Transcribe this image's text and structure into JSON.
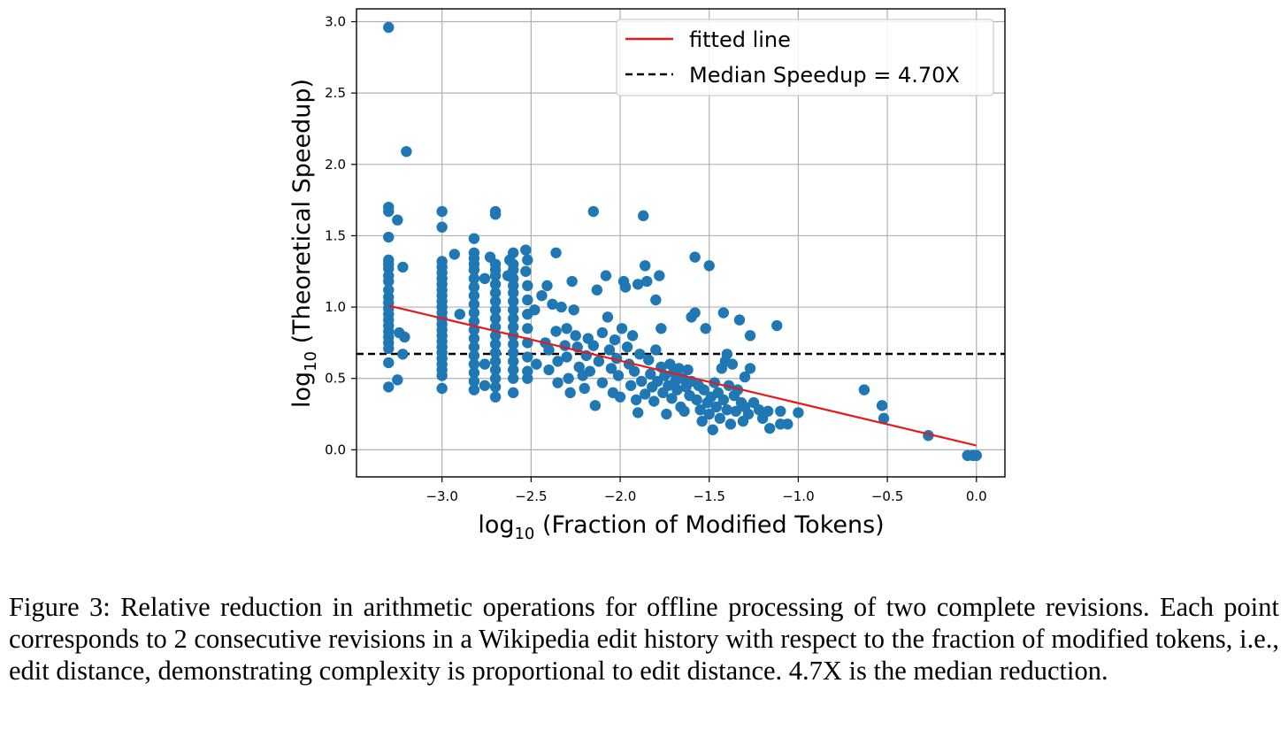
{
  "chart_data": {
    "type": "scatter",
    "xlabel_prefix": "log",
    "xlabel_sub": "10",
    "xlabel_rest": " (Fraction of Modified Tokens)",
    "ylabel_prefix": "log",
    "ylabel_sub": "10",
    "ylabel_rest": " (Theoretical Speedup)",
    "xlim": [
      -3.48,
      0.16
    ],
    "ylim": [
      -0.19,
      3.09
    ],
    "x_ticks": [
      -3.0,
      -2.5,
      -2.0,
      -1.5,
      -1.0,
      -0.5,
      0.0
    ],
    "x_tick_labels": [
      "−3.0",
      "−2.5",
      "−2.0",
      "−1.5",
      "−1.0",
      "−0.5",
      "0.0"
    ],
    "y_ticks": [
      0.0,
      0.5,
      1.0,
      1.5,
      2.0,
      2.5,
      3.0
    ],
    "y_tick_labels": [
      "0.0",
      "0.5",
      "1.0",
      "1.5",
      "2.0",
      "2.5",
      "3.0"
    ],
    "grid": true,
    "legend_position": "top-right",
    "colors": {
      "points": "#1f77b4",
      "fitted_line": "#e41a1c",
      "median_line": "#000000"
    },
    "fitted_line": {
      "label": "fitted line",
      "x": [
        -3.3,
        0.0
      ],
      "y": [
        1.01,
        0.03
      ]
    },
    "median_line": {
      "label": "Median Speedup = 4.70X",
      "y": 0.672
    },
    "points": [
      [
        -3.3,
        2.96
      ],
      [
        -3.2,
        2.09
      ],
      [
        -3.3,
        1.7
      ],
      [
        -3.3,
        1.67
      ],
      [
        -3.25,
        1.61
      ],
      [
        -3.3,
        1.49
      ],
      [
        -3.3,
        1.33
      ],
      [
        -3.3,
        1.3
      ],
      [
        -3.3,
        1.27
      ],
      [
        -3.22,
        1.28
      ],
      [
        -3.3,
        1.22
      ],
      [
        -3.3,
        1.18
      ],
      [
        -3.3,
        1.12
      ],
      [
        -3.3,
        1.07
      ],
      [
        -3.3,
        1.03
      ],
      [
        -3.3,
        0.99
      ],
      [
        -3.3,
        0.95
      ],
      [
        -3.3,
        0.91
      ],
      [
        -3.3,
        0.87
      ],
      [
        -3.3,
        0.83
      ],
      [
        -3.3,
        0.79
      ],
      [
        -3.3,
        0.75
      ],
      [
        -3.3,
        0.71
      ],
      [
        -3.24,
        0.82
      ],
      [
        -3.21,
        0.79
      ],
      [
        -3.22,
        0.67
      ],
      [
        -3.3,
        0.61
      ],
      [
        -3.25,
        0.49
      ],
      [
        -3.3,
        0.44
      ],
      [
        -3.0,
        1.67
      ],
      [
        -3.0,
        1.56
      ],
      [
        -3.0,
        1.32
      ],
      [
        -3.0,
        1.28
      ],
      [
        -3.0,
        1.24
      ],
      [
        -3.0,
        1.2
      ],
      [
        -3.0,
        1.16
      ],
      [
        -3.0,
        1.12
      ],
      [
        -3.0,
        1.08
      ],
      [
        -3.0,
        1.04
      ],
      [
        -3.0,
        1.0
      ],
      [
        -3.0,
        0.96
      ],
      [
        -3.0,
        0.92
      ],
      [
        -3.0,
        0.88
      ],
      [
        -3.0,
        0.84
      ],
      [
        -3.0,
        0.8
      ],
      [
        -3.0,
        0.76
      ],
      [
        -3.0,
        0.72
      ],
      [
        -3.0,
        0.68
      ],
      [
        -3.0,
        0.64
      ],
      [
        -3.0,
        0.6
      ],
      [
        -3.0,
        0.56
      ],
      [
        -3.0,
        0.52
      ],
      [
        -3.0,
        0.43
      ],
      [
        -2.93,
        1.37
      ],
      [
        -2.9,
        0.95
      ],
      [
        -2.82,
        1.48
      ],
      [
        -2.82,
        1.38
      ],
      [
        -2.82,
        1.34
      ],
      [
        -2.82,
        1.3
      ],
      [
        -2.82,
        1.26
      ],
      [
        -2.82,
        1.2
      ],
      [
        -2.82,
        1.14
      ],
      [
        -2.82,
        1.08
      ],
      [
        -2.82,
        1.02
      ],
      [
        -2.82,
        0.96
      ],
      [
        -2.82,
        0.9
      ],
      [
        -2.82,
        0.84
      ],
      [
        -2.82,
        0.78
      ],
      [
        -2.82,
        0.72
      ],
      [
        -2.82,
        0.66
      ],
      [
        -2.82,
        0.6
      ],
      [
        -2.82,
        0.54
      ],
      [
        -2.82,
        0.48
      ],
      [
        -2.82,
        0.42
      ],
      [
        -2.76,
        1.2
      ],
      [
        -2.76,
        0.6
      ],
      [
        -2.76,
        0.45
      ],
      [
        -2.73,
        1.35
      ],
      [
        -2.7,
        1.67
      ],
      [
        -2.7,
        1.65
      ],
      [
        -2.7,
        1.3
      ],
      [
        -2.7,
        1.26
      ],
      [
        -2.7,
        1.22
      ],
      [
        -2.7,
        1.16
      ],
      [
        -2.7,
        1.1
      ],
      [
        -2.7,
        1.04
      ],
      [
        -2.7,
        0.98
      ],
      [
        -2.7,
        0.92
      ],
      [
        -2.7,
        0.86
      ],
      [
        -2.7,
        0.8
      ],
      [
        -2.7,
        0.74
      ],
      [
        -2.7,
        0.68
      ],
      [
        -2.7,
        0.62
      ],
      [
        -2.7,
        0.56
      ],
      [
        -2.7,
        0.5
      ],
      [
        -2.7,
        0.44
      ],
      [
        -2.7,
        0.37
      ],
      [
        -2.63,
        1.22
      ],
      [
        -2.62,
        1.33
      ],
      [
        -2.6,
        1.38
      ],
      [
        -2.6,
        1.3
      ],
      [
        -2.6,
        1.26
      ],
      [
        -2.6,
        1.2
      ],
      [
        -2.6,
        1.15
      ],
      [
        -2.6,
        1.1
      ],
      [
        -2.6,
        1.04
      ],
      [
        -2.6,
        0.98
      ],
      [
        -2.6,
        0.92
      ],
      [
        -2.6,
        0.86
      ],
      [
        -2.6,
        0.8
      ],
      [
        -2.6,
        0.74
      ],
      [
        -2.6,
        0.68
      ],
      [
        -2.6,
        0.62
      ],
      [
        -2.6,
        0.56
      ],
      [
        -2.6,
        0.5
      ],
      [
        -2.6,
        0.4
      ],
      [
        -2.53,
        1.4
      ],
      [
        -2.53,
        1.25
      ],
      [
        -2.52,
        1.33
      ],
      [
        -2.52,
        1.15
      ],
      [
        -2.52,
        1.05
      ],
      [
        -2.52,
        0.95
      ],
      [
        -2.52,
        0.85
      ],
      [
        -2.52,
        0.75
      ],
      [
        -2.52,
        0.65
      ],
      [
        -2.52,
        0.55
      ],
      [
        -2.52,
        0.5
      ],
      [
        -2.48,
        0.98
      ],
      [
        -2.47,
        0.6
      ],
      [
        -2.44,
        1.08
      ],
      [
        -2.42,
        0.75
      ],
      [
        -2.41,
        1.15
      ],
      [
        -2.4,
        0.7
      ],
      [
        -2.4,
        0.56
      ],
      [
        -2.38,
        1.02
      ],
      [
        -2.36,
        0.83
      ],
      [
        -2.35,
        0.62
      ],
      [
        -2.35,
        0.47
      ],
      [
        -2.36,
        1.38
      ],
      [
        -2.33,
        1.0
      ],
      [
        -2.31,
        0.73
      ],
      [
        -2.3,
        0.85
      ],
      [
        -2.3,
        0.65
      ],
      [
        -2.29,
        0.5
      ],
      [
        -2.28,
        0.4
      ],
      [
        -2.27,
        1.18
      ],
      [
        -2.26,
        0.98
      ],
      [
        -2.25,
        0.8
      ],
      [
        -2.24,
        0.72
      ],
      [
        -2.23,
        0.58
      ],
      [
        -2.21,
        0.52
      ],
      [
        -2.2,
        0.43
      ],
      [
        -2.19,
        0.66
      ],
      [
        -2.18,
        0.78
      ],
      [
        -2.17,
        0.55
      ],
      [
        -2.15,
        0.73
      ],
      [
        -2.14,
        0.31
      ],
      [
        -2.15,
        1.67
      ],
      [
        -2.13,
        1.12
      ],
      [
        -2.12,
        0.62
      ],
      [
        -2.1,
        0.82
      ],
      [
        -2.1,
        0.47
      ],
      [
        -2.08,
        1.22
      ],
      [
        -2.07,
        0.93
      ],
      [
        -2.06,
        0.7
      ],
      [
        -2.05,
        0.57
      ],
      [
        -2.04,
        0.4
      ],
      [
        -2.03,
        0.77
      ],
      [
        -2.02,
        0.64
      ],
      [
        -2.01,
        0.52
      ],
      [
        -2.0,
        0.37
      ],
      [
        -1.99,
        0.85
      ],
      [
        -1.98,
        1.18
      ],
      [
        -1.97,
        1.14
      ],
      [
        -1.96,
        0.72
      ],
      [
        -1.95,
        0.6
      ],
      [
        -1.94,
        0.45
      ],
      [
        -1.93,
        0.8
      ],
      [
        -1.92,
        0.55
      ],
      [
        -1.91,
        0.35
      ],
      [
        -1.9,
        1.16
      ],
      [
        -1.9,
        0.26
      ],
      [
        -1.89,
        0.67
      ],
      [
        -1.88,
        0.48
      ],
      [
        -1.87,
        1.64
      ],
      [
        -1.86,
        1.29
      ],
      [
        -1.86,
        0.39
      ],
      [
        -1.85,
        1.18
      ],
      [
        -1.84,
        0.63
      ],
      [
        -1.83,
        0.53
      ],
      [
        -1.82,
        0.44
      ],
      [
        -1.81,
        0.34
      ],
      [
        -1.8,
        1.05
      ],
      [
        -1.8,
        0.7
      ],
      [
        -1.79,
        0.48
      ],
      [
        -1.78,
        1.22
      ],
      [
        -1.77,
        0.85
      ],
      [
        -1.77,
        0.58
      ],
      [
        -1.76,
        0.4
      ],
      [
        -1.75,
        0.52
      ],
      [
        -1.74,
        0.25
      ],
      [
        -1.73,
        0.45
      ],
      [
        -1.72,
        0.6
      ],
      [
        -1.71,
        0.36
      ],
      [
        -1.7,
        0.54
      ],
      [
        -1.69,
        0.48
      ],
      [
        -1.68,
        0.42
      ],
      [
        -1.67,
        0.57
      ],
      [
        -1.66,
        0.3
      ],
      [
        -1.65,
        0.5
      ],
      [
        -1.64,
        0.27
      ],
      [
        -1.63,
        0.44
      ],
      [
        -1.62,
        0.56
      ],
      [
        -1.61,
        0.38
      ],
      [
        -1.6,
        0.93
      ],
      [
        -1.6,
        0.48
      ],
      [
        -1.58,
        1.35
      ],
      [
        -1.58,
        0.96
      ],
      [
        -1.57,
        0.35
      ],
      [
        -1.56,
        0.45
      ],
      [
        -1.55,
        0.28
      ],
      [
        -1.54,
        0.2
      ],
      [
        -1.53,
        0.42
      ],
      [
        -1.52,
        0.85
      ],
      [
        -1.51,
        0.33
      ],
      [
        -1.5,
        1.29
      ],
      [
        -1.5,
        0.25
      ],
      [
        -1.49,
        0.37
      ],
      [
        -1.48,
        0.14
      ],
      [
        -1.47,
        0.47
      ],
      [
        -1.46,
        0.3
      ],
      [
        -1.45,
        0.4
      ],
      [
        -1.44,
        0.22
      ],
      [
        -1.43,
        0.57
      ],
      [
        -1.42,
        0.96
      ],
      [
        -1.42,
        0.35
      ],
      [
        -1.41,
        0.62
      ],
      [
        -1.4,
        0.67
      ],
      [
        -1.4,
        0.28
      ],
      [
        -1.39,
        0.45
      ],
      [
        -1.38,
        0.18
      ],
      [
        -1.37,
        0.6
      ],
      [
        -1.36,
        0.38
      ],
      [
        -1.35,
        0.27
      ],
      [
        -1.34,
        0.42
      ],
      [
        -1.33,
        0.91
      ],
      [
        -1.32,
        0.33
      ],
      [
        -1.31,
        0.2
      ],
      [
        -1.3,
        0.51
      ],
      [
        -1.3,
        0.3
      ],
      [
        -1.28,
        0.25
      ],
      [
        -1.27,
        0.8
      ],
      [
        -1.27,
        0.57
      ],
      [
        -1.25,
        0.33
      ],
      [
        -1.22,
        0.28
      ],
      [
        -1.2,
        0.22
      ],
      [
        -1.17,
        0.27
      ],
      [
        -1.16,
        0.15
      ],
      [
        -1.12,
        0.87
      ],
      [
        -1.1,
        0.27
      ],
      [
        -1.1,
        0.18
      ],
      [
        -1.06,
        0.18
      ],
      [
        -1.0,
        0.26
      ],
      [
        -0.63,
        0.42
      ],
      [
        -0.53,
        0.31
      ],
      [
        -0.52,
        0.22
      ],
      [
        -0.27,
        0.1
      ],
      [
        -0.05,
        -0.04
      ],
      [
        -0.02,
        -0.04
      ],
      [
        0.0,
        -0.04
      ]
    ]
  },
  "caption": {
    "lines": [
      "Figure 3: Relative reduction in arithmetic operations for offline processing of two complete revisions.",
      "Each point corresponds to 2 consecutive revisions in a Wikipedia edit history with respect to the",
      "fraction of modified tokens, i.e., edit distance, demonstrating complexity is proportional to edit",
      "distance. 4.7X is the median reduction."
    ]
  }
}
